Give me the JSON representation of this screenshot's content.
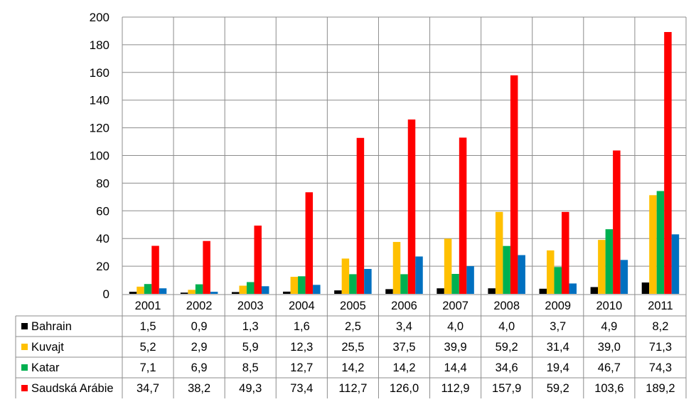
{
  "chart_data": {
    "type": "bar",
    "title": "",
    "xlabel": "",
    "ylabel": "",
    "ylim": [
      0,
      200
    ],
    "yticks": [
      0,
      20,
      40,
      60,
      80,
      100,
      120,
      140,
      160,
      180,
      200
    ],
    "grid": true,
    "legend": "data-table-left",
    "categories": [
      "2001",
      "2002",
      "2003",
      "2004",
      "2005",
      "2006",
      "2007",
      "2008",
      "2009",
      "2010",
      "2011"
    ],
    "series": [
      {
        "name": "Bahrain",
        "color": "#000000",
        "values": [
          1.5,
          0.9,
          1.3,
          1.6,
          2.5,
          3.4,
          4.0,
          4.0,
          3.7,
          4.9,
          8.2
        ],
        "labels": [
          "1,5",
          "0,9",
          "1,3",
          "1,6",
          "2,5",
          "3,4",
          "4,0",
          "4,0",
          "3,7",
          "4,9",
          "8,2"
        ]
      },
      {
        "name": "Kuvajt",
        "color": "#FFC000",
        "values": [
          5.2,
          2.9,
          5.9,
          12.3,
          25.5,
          37.5,
          39.9,
          59.2,
          31.4,
          39.0,
          71.3
        ],
        "labels": [
          "5,2",
          "2,9",
          "5,9",
          "12,3",
          "25,5",
          "37,5",
          "39,9",
          "59,2",
          "31,4",
          "39,0",
          "71,3"
        ]
      },
      {
        "name": "Katar",
        "color": "#00B050",
        "values": [
          7.1,
          6.9,
          8.5,
          12.7,
          14.2,
          14.2,
          14.4,
          34.6,
          19.4,
          46.7,
          74.3
        ],
        "labels": [
          "7,1",
          "6,9",
          "8,5",
          "12,7",
          "14,2",
          "14,2",
          "14,4",
          "34,6",
          "19,4",
          "46,7",
          "74,3"
        ]
      },
      {
        "name": "Saudská Arábie",
        "color": "#FF0000",
        "values": [
          34.7,
          38.2,
          49.3,
          73.4,
          112.7,
          126.0,
          112.9,
          157.9,
          59.2,
          103.6,
          189.2
        ],
        "labels": [
          "34,7",
          "38,2",
          "49,3",
          "73,4",
          "112,7",
          "126,0",
          "112,9",
          "157,9",
          "59,2",
          "103,6",
          "189,2"
        ]
      },
      {
        "color": "#0070C0",
        "values": [
          4.0,
          1.5,
          5.5,
          6.5,
          18.0,
          27.0,
          20.0,
          28.0,
          7.5,
          24.5,
          43.0
        ]
      }
    ]
  }
}
